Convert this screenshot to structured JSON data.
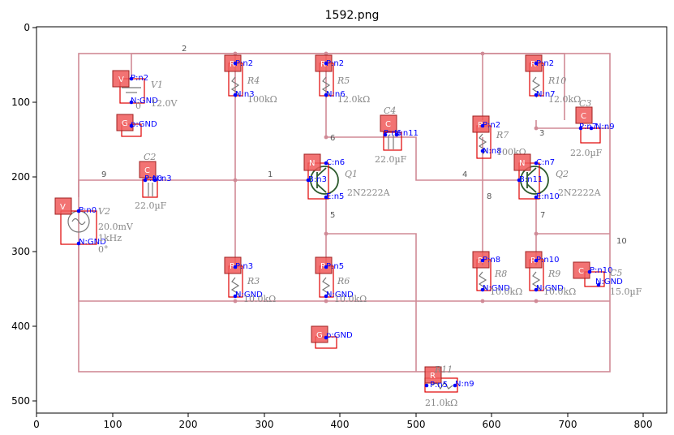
{
  "figure": {
    "title": "1592.png",
    "x_ticks": [
      "0",
      "100",
      "200",
      "300",
      "400",
      "500",
      "600",
      "700",
      "800"
    ],
    "y_ticks": [
      "0",
      "100",
      "200",
      "300",
      "400",
      "500"
    ]
  },
  "colors": {
    "wire": "#d08a96",
    "box": "#e00000",
    "tag": "#f05a5a",
    "pin": "#0000ff",
    "transistor": "#2c5a2c"
  },
  "nets": [
    "2",
    "9",
    "1",
    "4",
    "6",
    "3",
    "8",
    "5",
    "7",
    "10"
  ],
  "components": [
    {
      "id": "V1",
      "tag": "V",
      "name": "V1",
      "value": "12.0V",
      "extra": "0",
      "pins": [
        "P:n2",
        "N:GND"
      ]
    },
    {
      "id": "G1",
      "tag": "G",
      "pins": [
        "p:GND"
      ]
    },
    {
      "id": "R4",
      "tag": "R",
      "name": "R4",
      "value": "100kΩ",
      "pins": [
        "P:n2",
        "N:n3"
      ]
    },
    {
      "id": "R5",
      "tag": "R",
      "name": "R5",
      "value": "12.0kΩ",
      "pins": [
        "P:n2",
        "N:n6"
      ]
    },
    {
      "id": "R10",
      "tag": "R",
      "name": "R10",
      "value": "12.0kΩ",
      "pins": [
        "P:n2",
        "N:n7"
      ]
    },
    {
      "id": "C4",
      "tag": "C",
      "name": "C4",
      "value": "22.0µF",
      "pins": [
        "P:n6",
        "N:n11"
      ]
    },
    {
      "id": "C3",
      "tag": "C",
      "name": "C3",
      "value": "22.0µF",
      "pins": [
        "P:n7",
        "N:n9"
      ]
    },
    {
      "id": "R7",
      "tag": "R",
      "name": "R7",
      "value": "100kΩ",
      "pins": [
        "P:n2",
        "N:n8"
      ]
    },
    {
      "id": "C2",
      "tag": "C",
      "name": "C2",
      "value": "22.0µF",
      "pins": [
        "P:n0",
        "N:n3"
      ]
    },
    {
      "id": "Q1",
      "tag": "N",
      "name": "Q1",
      "value": "2N2222A",
      "pins": [
        "C:n6",
        "B:n3",
        "E:n5"
      ]
    },
    {
      "id": "Q2",
      "tag": "N",
      "name": "Q2",
      "value": "2N2222A",
      "pins": [
        "C:n7",
        "B:n11",
        "E:n10"
      ]
    },
    {
      "id": "V2",
      "tag": "V",
      "name": "V2",
      "value": "20.0mV",
      "extra": "1kHz",
      "extra2": "0°",
      "pins": [
        "P:n0",
        "N:GND"
      ]
    },
    {
      "id": "R3",
      "tag": "R",
      "name": "R3",
      "value": "10.0kΩ",
      "pins": [
        "P:n3",
        "N:GND"
      ]
    },
    {
      "id": "R6",
      "tag": "R",
      "name": "R6",
      "value": "10.0kΩ",
      "pins": [
        "P:n5",
        "N:GND"
      ]
    },
    {
      "id": "R8",
      "tag": "R",
      "name": "R8",
      "value": "10.0kΩ",
      "pins": [
        "P:n8",
        "N:GND"
      ]
    },
    {
      "id": "R9",
      "tag": "R",
      "name": "R9",
      "value": "10.0kΩ",
      "pins": [
        "P:n10",
        "N:GND"
      ]
    },
    {
      "id": "C5",
      "tag": "C",
      "name": "C5",
      "value": "15.0µF",
      "pins": [
        "P:n10",
        "N:GND"
      ]
    },
    {
      "id": "G2",
      "tag": "G",
      "pins": [
        "p:GND"
      ]
    },
    {
      "id": "R11",
      "tag": "R",
      "name": "R11",
      "value": "21.0kΩ",
      "pins": [
        "P:n5",
        "N:n9"
      ]
    }
  ]
}
